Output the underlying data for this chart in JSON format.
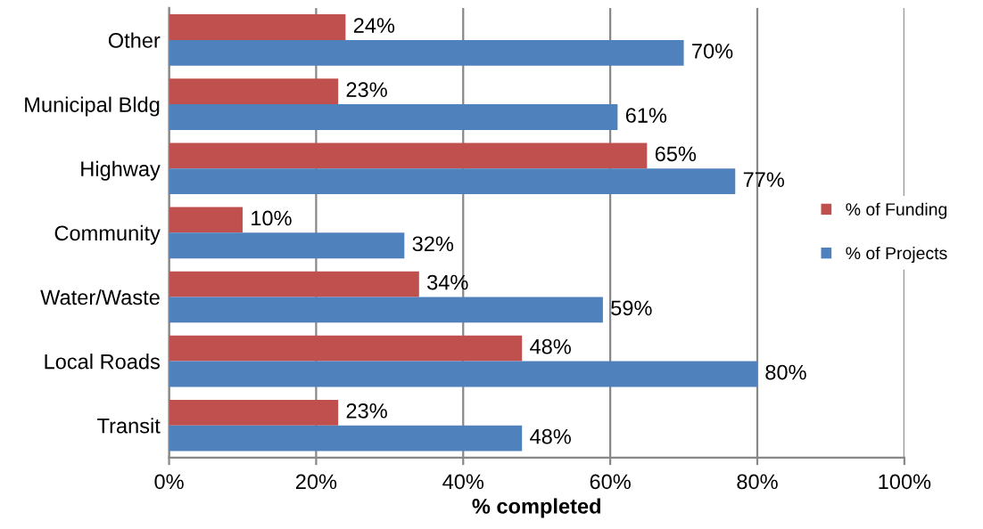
{
  "chart_data": {
    "type": "bar",
    "orientation": "horizontal",
    "xlabel": "% completed",
    "categories": [
      "Other",
      "Municipal Bldg",
      "Highway",
      "Community",
      "Water/Waste",
      "Local Roads",
      "Transit"
    ],
    "series": [
      {
        "name": "% of Funding",
        "color": "#c0504d",
        "values": [
          24,
          23,
          65,
          10,
          34,
          48,
          23
        ],
        "value_labels": [
          "24%",
          "23%",
          "65%",
          "10%",
          "34%",
          "48%",
          "23%"
        ]
      },
      {
        "name": "% of Projects",
        "color": "#4f81bd",
        "values": [
          70,
          61,
          77,
          32,
          59,
          80,
          48
        ],
        "value_labels": [
          "70%",
          "61%",
          "77%",
          "32%",
          "59%",
          "80%",
          "48%"
        ]
      }
    ],
    "xlim": [
      0,
      100
    ],
    "xticks": [
      {
        "value": 0,
        "label": "0%"
      },
      {
        "value": 20,
        "label": "20%"
      },
      {
        "value": 40,
        "label": "40%"
      },
      {
        "value": 60,
        "label": "60%"
      },
      {
        "value": 80,
        "label": "80%"
      },
      {
        "value": 100,
        "label": "100%"
      }
    ],
    "grid": "x",
    "legend": "right"
  }
}
